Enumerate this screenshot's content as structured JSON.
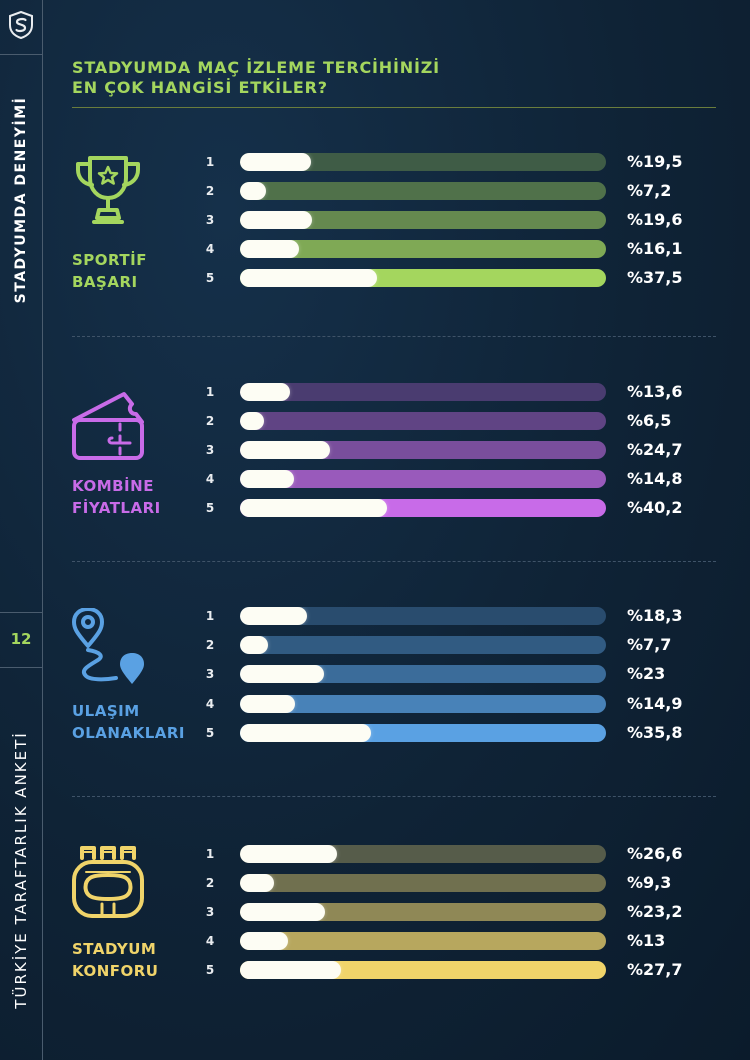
{
  "sidebar": {
    "logo_icon": "shield-s-logo-icon",
    "section_title": "STADYUMDA DENEYİMİ",
    "page_number": "12",
    "survey_title": "TÜRKİYE TARAFTARLIK ANKETİ"
  },
  "heading": {
    "line1": "STADYUMDA MAÇ İZLEME TERCİHİNİZİ",
    "line2": "EN ÇOK HANGİSİ ETKİLER?"
  },
  "chart_data": {
    "type": "bar",
    "orientation": "horizontal",
    "title": "STADYUMDA MAÇ İZLEME TERCİHİNİZİ EN ÇOK HANGİSİ ETKİLER?",
    "categories": [
      "1",
      "2",
      "3",
      "4",
      "5"
    ],
    "unit": "percent",
    "xlim": [
      0,
      100
    ],
    "series": [
      {
        "name": "SPORTİF BAŞARI",
        "label_lines": [
          "SPORTİF",
          "BAŞARI"
        ],
        "icon": "trophy-icon",
        "color": "#a4d65e",
        "values": [
          19.5,
          7.2,
          19.6,
          16.1,
          37.5
        ],
        "value_labels": [
          "%19,5",
          "%7,2",
          "%19,6",
          "%16,1",
          "%37,5"
        ]
      },
      {
        "name": "KOMBİNE FİYATLARI",
        "label_lines": [
          "KOMBİNE",
          "FİYATLARI"
        ],
        "icon": "ticket-icon",
        "color": "#c86be8",
        "values": [
          13.6,
          6.5,
          24.7,
          14.8,
          40.2
        ],
        "value_labels": [
          "%13,6",
          "%6,5",
          "%24,7",
          "%14,8",
          "%40,2"
        ]
      },
      {
        "name": "ULAŞIM OLANAKLARI",
        "label_lines": [
          "ULAŞIM",
          "OLANAKLARI"
        ],
        "icon": "route-pin-icon",
        "color": "#5aa1e3",
        "values": [
          18.3,
          7.7,
          23,
          14.9,
          35.8
        ],
        "value_labels": [
          "%18,3",
          "%7,7",
          "%23",
          "%14,9",
          "%35,8"
        ]
      },
      {
        "name": "STADYUM KONFORU",
        "label_lines": [
          "STADYUM",
          "KONFORU"
        ],
        "icon": "stadium-icon",
        "color": "#f0d46a",
        "values": [
          26.6,
          9.3,
          23.2,
          13,
          27.7
        ],
        "value_labels": [
          "%26,6",
          "%9,3",
          "%23,2",
          "%13",
          "%27,7"
        ]
      }
    ]
  }
}
